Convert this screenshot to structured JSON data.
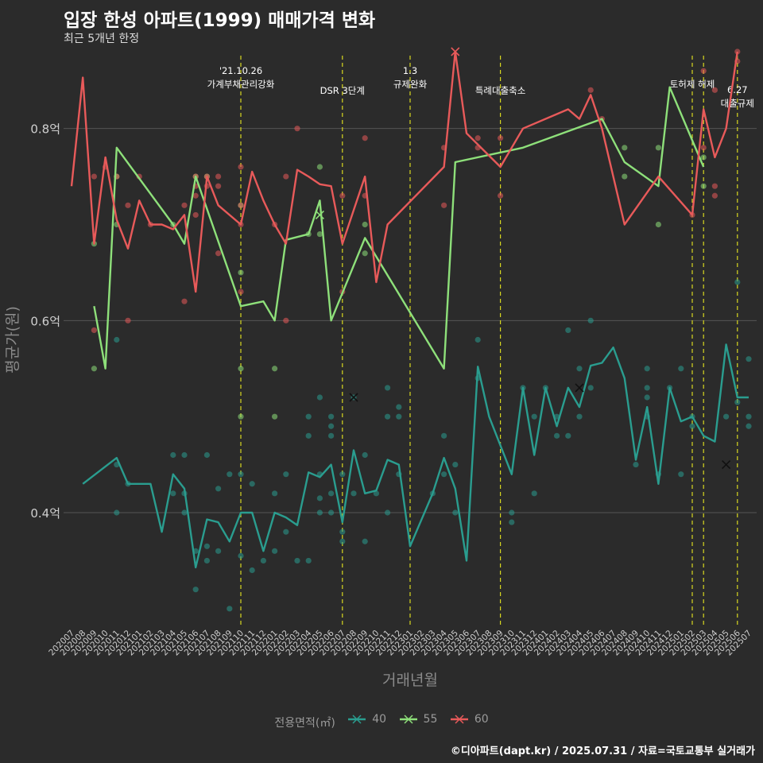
{
  "title": "입장 한성 아파트(1999) 매매가격 변화",
  "subtitle": "최근 5개년 한정",
  "caption": "©디아파트(dapt.kr) / 2025.07.31 / 자료=국토교통부 실거래가",
  "legend_title": "전용면적(㎡)",
  "colors": {
    "40": "#2a9d8f",
    "55": "#8ee07a",
    "60": "#e85a5a",
    "vline": "#d8d820",
    "grid": "#555555"
  },
  "chart_data": {
    "type": "line",
    "xlabel": "거래년월",
    "ylabel": "평균가(원)",
    "ylim": [
      0.28,
      0.88
    ],
    "yticks": [
      {
        "v": 0.4,
        "label": "0.4억"
      },
      {
        "v": 0.6,
        "label": "0.6억"
      },
      {
        "v": 0.8,
        "label": "0.8억"
      }
    ],
    "categories": [
      "202007",
      "202008",
      "202009",
      "202010",
      "202011",
      "202012",
      "202101",
      "202102",
      "202103",
      "202104",
      "202105",
      "202106",
      "202107",
      "202108",
      "202109",
      "202110",
      "202111",
      "202112",
      "202201",
      "202202",
      "202203",
      "202204",
      "202205",
      "202206",
      "202207",
      "202208",
      "202209",
      "202210",
      "202211",
      "202212",
      "202301",
      "202302",
      "202303",
      "202304",
      "202305",
      "202306",
      "202307",
      "202308",
      "202309",
      "202310",
      "202311",
      "202312",
      "202401",
      "202402",
      "202403",
      "202404",
      "202405",
      "202406",
      "202407",
      "202408",
      "202409",
      "202410",
      "202411",
      "202412",
      "202501",
      "202502",
      "202503",
      "202504",
      "202505",
      "202506",
      "202507"
    ],
    "series": [
      {
        "name": "40",
        "color": "#2a9d8f",
        "x": [
          "202008",
          "202011",
          "202012",
          "202102",
          "202103",
          "202104",
          "202105",
          "202106",
          "202107",
          "202108",
          "202109",
          "202110",
          "202111",
          "202112",
          "202201",
          "202202",
          "202203",
          "202204",
          "202205",
          "202206",
          "202207",
          "202208",
          "202209",
          "202210",
          "202211",
          "202212",
          "202301",
          "202303",
          "202304",
          "202305",
          "202306",
          "202307",
          "202308",
          "202309",
          "202310",
          "202311",
          "202312",
          "202401",
          "202402",
          "202403",
          "202404",
          "202405",
          "202406",
          "202407",
          "202408",
          "202409",
          "202410",
          "202411",
          "202412",
          "202501",
          "202502",
          "202503",
          "202504",
          "202505",
          "202506",
          "202507"
        ],
        "y": [
          0.43,
          0.457,
          0.43,
          0.43,
          0.38,
          0.44,
          0.425,
          0.343,
          0.393,
          0.39,
          0.37,
          0.4,
          0.4,
          0.36,
          0.4,
          0.395,
          0.387,
          0.442,
          0.437,
          0.45,
          0.39,
          0.465,
          0.42,
          0.423,
          0.455,
          0.45,
          0.365,
          0.42,
          0.457,
          0.425,
          0.35,
          0.552,
          0.5,
          0.47,
          0.44,
          0.53,
          0.46,
          0.53,
          0.49,
          0.53,
          0.51,
          0.553,
          0.556,
          0.572,
          0.54,
          0.455,
          0.51,
          0.43,
          0.53,
          0.495,
          0.5,
          0.48,
          0.474,
          0.575,
          0.52,
          0.52
        ]
      },
      {
        "name": "55",
        "color": "#8ee07a",
        "x": [
          "202009",
          "202010",
          "202011",
          "202104",
          "202105",
          "202106",
          "202110",
          "202112",
          "202201",
          "202202",
          "202204",
          "202205",
          "202206",
          "202209",
          "202304",
          "202305",
          "202311",
          "202406",
          "202408",
          "202411",
          "202412",
          "202503"
        ],
        "y": [
          0.615,
          0.55,
          0.78,
          0.7,
          0.68,
          0.75,
          0.615,
          0.62,
          0.6,
          0.684,
          0.69,
          0.725,
          0.6,
          0.686,
          0.55,
          0.765,
          0.78,
          0.81,
          0.765,
          0.74,
          0.843,
          0.76
        ]
      },
      {
        "name": "60",
        "color": "#e85a5a",
        "x": [
          "202007",
          "202008",
          "202009",
          "202010",
          "202011",
          "202012",
          "202101",
          "202102",
          "202103",
          "202104",
          "202105",
          "202106",
          "202107",
          "202108",
          "202110",
          "202111",
          "202112",
          "202201",
          "202202",
          "202203",
          "202204",
          "202205",
          "202206",
          "202207",
          "202208",
          "202209",
          "202210",
          "202211",
          "202304",
          "202305",
          "202306",
          "202309",
          "202311",
          "202403",
          "202404",
          "202405",
          "202406",
          "202408",
          "202411",
          "202502",
          "202503",
          "202504",
          "202505",
          "202506"
        ],
        "y": [
          0.74,
          0.853,
          0.68,
          0.77,
          0.705,
          0.675,
          0.725,
          0.7,
          0.7,
          0.695,
          0.71,
          0.63,
          0.75,
          0.72,
          0.7,
          0.755,
          0.725,
          0.7,
          0.68,
          0.757,
          0.75,
          0.742,
          0.74,
          0.68,
          0.715,
          0.75,
          0.64,
          0.7,
          0.76,
          0.88,
          0.795,
          0.76,
          0.8,
          0.82,
          0.81,
          0.835,
          0.8,
          0.7,
          0.75,
          0.71,
          0.82,
          0.77,
          0.8,
          0.88
        ]
      }
    ],
    "scatter": [
      {
        "name": "40",
        "points": [
          [
            "202011",
            0.45
          ],
          [
            "202011",
            0.4
          ],
          [
            "202011",
            0.58
          ],
          [
            "202012",
            0.43
          ],
          [
            "202104",
            0.46
          ],
          [
            "202104",
            0.42
          ],
          [
            "202105",
            0.46
          ],
          [
            "202105",
            0.4
          ],
          [
            "202105",
            0.42
          ],
          [
            "202106",
            0.32
          ],
          [
            "202106",
            0.36
          ],
          [
            "202107",
            0.46
          ],
          [
            "202107",
            0.35
          ],
          [
            "202107",
            0.365
          ],
          [
            "202108",
            0.36
          ],
          [
            "202108",
            0.425
          ],
          [
            "202109",
            0.3
          ],
          [
            "202109",
            0.44
          ],
          [
            "202110",
            0.44
          ],
          [
            "202110",
            0.355
          ],
          [
            "202111",
            0.34
          ],
          [
            "202111",
            0.43
          ],
          [
            "202112",
            0.35
          ],
          [
            "202201",
            0.36
          ],
          [
            "202201",
            0.42
          ],
          [
            "202202",
            0.44
          ],
          [
            "202202",
            0.38
          ],
          [
            "202203",
            0.35
          ],
          [
            "202204",
            0.48
          ],
          [
            "202204",
            0.5
          ],
          [
            "202204",
            0.35
          ],
          [
            "202205",
            0.4
          ],
          [
            "202205",
            0.415
          ],
          [
            "202205",
            0.44
          ],
          [
            "202205",
            0.52
          ],
          [
            "202206",
            0.4
          ],
          [
            "202206",
            0.42
          ],
          [
            "202206",
            0.49
          ],
          [
            "202206",
            0.5
          ],
          [
            "202206",
            0.48
          ],
          [
            "202207",
            0.37
          ],
          [
            "202207",
            0.38
          ],
          [
            "202207",
            0.44
          ],
          [
            "202208",
            0.42
          ],
          [
            "202208",
            0.52
          ],
          [
            "202209",
            0.46
          ],
          [
            "202209",
            0.37
          ],
          [
            "202210",
            0.42
          ],
          [
            "202211",
            0.53
          ],
          [
            "202211",
            0.5
          ],
          [
            "202211",
            0.4
          ],
          [
            "202212",
            0.51
          ],
          [
            "202212",
            0.5
          ],
          [
            "202212",
            0.44
          ],
          [
            "202303",
            0.42
          ],
          [
            "202304",
            0.48
          ],
          [
            "202304",
            0.44
          ],
          [
            "202305",
            0.45
          ],
          [
            "202305",
            0.4
          ],
          [
            "202307",
            0.58
          ],
          [
            "202307",
            0.54
          ],
          [
            "202310",
            0.39
          ],
          [
            "202310",
            0.4
          ],
          [
            "202311",
            0.53
          ],
          [
            "202312",
            0.42
          ],
          [
            "202312",
            0.5
          ],
          [
            "202401",
            0.53
          ],
          [
            "202402",
            0.5
          ],
          [
            "202402",
            0.48
          ],
          [
            "202403",
            0.59
          ],
          [
            "202403",
            0.48
          ],
          [
            "202404",
            0.55
          ],
          [
            "202404",
            0.5
          ],
          [
            "202405",
            0.6
          ],
          [
            "202405",
            0.53
          ],
          [
            "202409",
            0.45
          ],
          [
            "202410",
            0.5
          ],
          [
            "202410",
            0.52
          ],
          [
            "202410",
            0.53
          ],
          [
            "202410",
            0.55
          ],
          [
            "202411",
            0.44
          ],
          [
            "202412",
            0.53
          ],
          [
            "202501",
            0.55
          ],
          [
            "202501",
            0.44
          ],
          [
            "202502",
            0.5
          ],
          [
            "202502",
            0.49
          ],
          [
            "202505",
            0.5
          ],
          [
            "202506",
            0.64
          ],
          [
            "202506",
            0.515
          ],
          [
            "202507",
            0.56
          ],
          [
            "202507",
            0.5
          ],
          [
            "202507",
            0.49
          ]
        ]
      },
      {
        "name": "55",
        "points": [
          [
            "202009",
            0.68
          ],
          [
            "202009",
            0.55
          ],
          [
            "202011",
            0.75
          ],
          [
            "202011",
            0.7
          ],
          [
            "202104",
            0.7
          ],
          [
            "202106",
            0.75
          ],
          [
            "202107",
            0.75
          ],
          [
            "202110",
            0.72
          ],
          [
            "202110",
            0.65
          ],
          [
            "202110",
            0.55
          ],
          [
            "202110",
            0.5
          ],
          [
            "202201",
            0.55
          ],
          [
            "202201",
            0.5
          ],
          [
            "202204",
            0.69
          ],
          [
            "202205",
            0.76
          ],
          [
            "202205",
            0.69
          ],
          [
            "202209",
            0.7
          ],
          [
            "202209",
            0.67
          ],
          [
            "202408",
            0.78
          ],
          [
            "202408",
            0.75
          ],
          [
            "202411",
            0.78
          ],
          [
            "202411",
            0.7
          ],
          [
            "202503",
            0.77
          ],
          [
            "202503",
            0.74
          ]
        ]
      },
      {
        "name": "60",
        "points": [
          [
            "202009",
            0.75
          ],
          [
            "202009",
            0.59
          ],
          [
            "202010",
            0.76
          ],
          [
            "202011",
            0.75
          ],
          [
            "202012",
            0.72
          ],
          [
            "202012",
            0.6
          ],
          [
            "202101",
            0.75
          ],
          [
            "202102",
            0.7
          ],
          [
            "202105",
            0.72
          ],
          [
            "202105",
            0.62
          ],
          [
            "202106",
            0.75
          ],
          [
            "202106",
            0.74
          ],
          [
            "202106",
            0.73
          ],
          [
            "202106",
            0.71
          ],
          [
            "202107",
            0.75
          ],
          [
            "202107",
            0.74
          ],
          [
            "202108",
            0.75
          ],
          [
            "202108",
            0.74
          ],
          [
            "202108",
            0.67
          ],
          [
            "202110",
            0.76
          ],
          [
            "202110",
            0.72
          ],
          [
            "202110",
            0.7
          ],
          [
            "202110",
            0.63
          ],
          [
            "202201",
            0.7
          ],
          [
            "202202",
            0.75
          ],
          [
            "202202",
            0.6
          ],
          [
            "202203",
            0.8
          ],
          [
            "202207",
            0.73
          ],
          [
            "202207",
            0.63
          ],
          [
            "202209",
            0.79
          ],
          [
            "202209",
            0.73
          ],
          [
            "202304",
            0.78
          ],
          [
            "202304",
            0.72
          ],
          [
            "202307",
            0.79
          ],
          [
            "202307",
            0.78
          ],
          [
            "202309",
            0.79
          ],
          [
            "202309",
            0.73
          ],
          [
            "202406",
            0.81
          ],
          [
            "202405",
            0.84
          ],
          [
            "202502",
            0.71
          ],
          [
            "202503",
            0.86
          ],
          [
            "202503",
            0.78
          ],
          [
            "202504",
            0.84
          ],
          [
            "202504",
            0.74
          ],
          [
            "202504",
            0.73
          ],
          [
            "202506",
            0.88
          ],
          [
            "202506",
            0.87
          ]
        ]
      }
    ],
    "marks_x": [
      [
        "40",
        "202208",
        0.52
      ],
      [
        "40",
        "202404",
        0.53
      ],
      [
        "40",
        "202505",
        0.45
      ],
      [
        "55",
        "202205",
        0.71
      ],
      [
        "60",
        "202305",
        0.88
      ]
    ],
    "vlines": [
      {
        "x": "202110",
        "label": "'21.10.26\n가계부채관리강화",
        "row": 0
      },
      {
        "x": "202207",
        "label": "DSR 3단계",
        "row": 2
      },
      {
        "x": "202301",
        "label": "1.3\n규제완화",
        "row": 0
      },
      {
        "x": "202309",
        "label": "특례대출축소",
        "row": 2
      },
      {
        "x": "202502",
        "label": "토허제 해제",
        "row": 1
      },
      {
        "x": "202503",
        "label": "",
        "row": 1
      },
      {
        "x": "202506",
        "label": "6.27\n대출규제",
        "row": 3
      }
    ]
  }
}
